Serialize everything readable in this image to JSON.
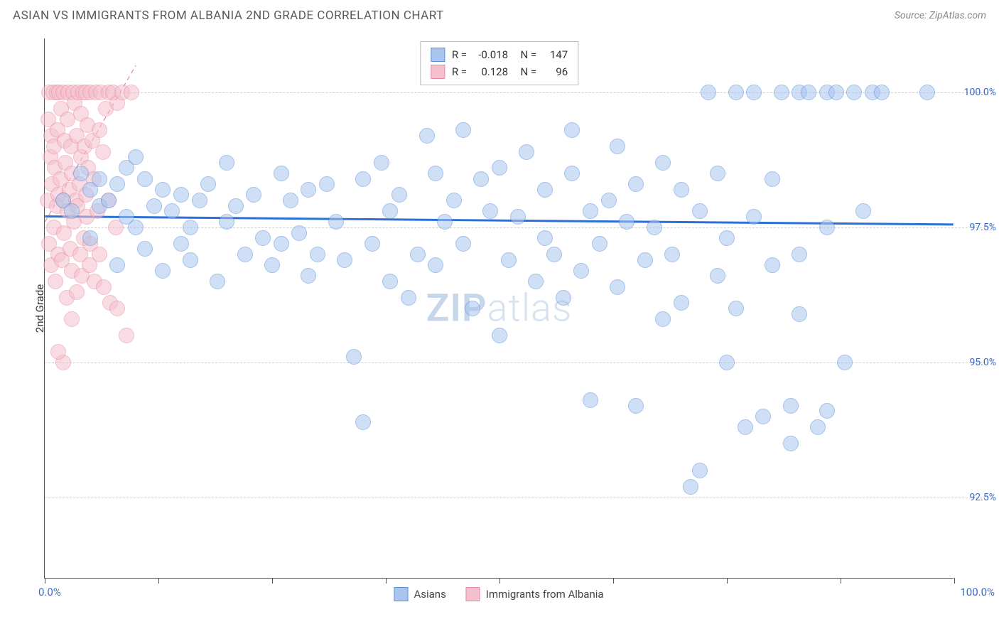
{
  "title": "ASIAN VS IMMIGRANTS FROM ALBANIA 2ND GRADE CORRELATION CHART",
  "source": "Source: ZipAtlas.com",
  "y_axis_title": "2nd Grade",
  "watermark_a": "ZIP",
  "watermark_b": "atlas",
  "chart": {
    "type": "scatter",
    "xlim": [
      0,
      100
    ],
    "ylim": [
      91,
      101
    ],
    "y_ticks": [
      {
        "v": 92.5,
        "label": "92.5%"
      },
      {
        "v": 95.0,
        "label": "95.0%"
      },
      {
        "v": 97.5,
        "label": "97.5%"
      },
      {
        "v": 100.0,
        "label": "100.0%"
      }
    ],
    "x_ticks": [
      0,
      12.5,
      25,
      37.5,
      50,
      62.5,
      75,
      87.5,
      100
    ],
    "x_label_0": "0.0%",
    "x_label_100": "100.0%",
    "background": "#ffffff",
    "grid_color": "#d0d0d0",
    "point_radius": 11,
    "point_opacity": 0.55,
    "series": [
      {
        "name": "Asians",
        "color_fill": "#a9c5ef",
        "color_stroke": "#5b8fd6",
        "R": "-0.018",
        "N": "147",
        "trend": {
          "x1": 0,
          "y1": 97.7,
          "x2": 100,
          "y2": 97.55,
          "stroke": "#2c6fd6",
          "width": 3,
          "dash": "none"
        },
        "points": [
          [
            2,
            98.0
          ],
          [
            3,
            97.8
          ],
          [
            4,
            98.5
          ],
          [
            5,
            98.2
          ],
          [
            5,
            97.3
          ],
          [
            6,
            97.9
          ],
          [
            6,
            98.4
          ],
          [
            7,
            98.0
          ],
          [
            8,
            98.3
          ],
          [
            8,
            96.8
          ],
          [
            9,
            97.7
          ],
          [
            9,
            98.6
          ],
          [
            10,
            97.5
          ],
          [
            10,
            98.8
          ],
          [
            11,
            98.4
          ],
          [
            11,
            97.1
          ],
          [
            12,
            97.9
          ],
          [
            13,
            98.2
          ],
          [
            13,
            96.7
          ],
          [
            14,
            97.8
          ],
          [
            15,
            98.1
          ],
          [
            15,
            97.2
          ],
          [
            16,
            97.5
          ],
          [
            16,
            96.9
          ],
          [
            17,
            98.0
          ],
          [
            18,
            98.3
          ],
          [
            19,
            96.5
          ],
          [
            20,
            97.6
          ],
          [
            20,
            98.7
          ],
          [
            21,
            97.9
          ],
          [
            22,
            97.0
          ],
          [
            23,
            98.1
          ],
          [
            24,
            97.3
          ],
          [
            25,
            96.8
          ],
          [
            26,
            98.5
          ],
          [
            26,
            97.2
          ],
          [
            27,
            98.0
          ],
          [
            28,
            97.4
          ],
          [
            29,
            98.2
          ],
          [
            29,
            96.6
          ],
          [
            30,
            97.0
          ],
          [
            31,
            98.3
          ],
          [
            32,
            97.6
          ],
          [
            33,
            96.9
          ],
          [
            34,
            95.1
          ],
          [
            35,
            98.4
          ],
          [
            35,
            93.9
          ],
          [
            36,
            97.2
          ],
          [
            37,
            98.7
          ],
          [
            38,
            96.5
          ],
          [
            38,
            97.8
          ],
          [
            39,
            98.1
          ],
          [
            40,
            96.2
          ],
          [
            41,
            97.0
          ],
          [
            42,
            99.2
          ],
          [
            43,
            98.5
          ],
          [
            43,
            96.8
          ],
          [
            44,
            97.6
          ],
          [
            45,
            98.0
          ],
          [
            46,
            99.3
          ],
          [
            46,
            97.2
          ],
          [
            47,
            96.0
          ],
          [
            48,
            98.4
          ],
          [
            49,
            97.8
          ],
          [
            50,
            95.5
          ],
          [
            50,
            98.6
          ],
          [
            51,
            96.9
          ],
          [
            52,
            97.7
          ],
          [
            53,
            98.9
          ],
          [
            54,
            96.5
          ],
          [
            55,
            97.3
          ],
          [
            55,
            98.2
          ],
          [
            56,
            97.0
          ],
          [
            57,
            96.2
          ],
          [
            58,
            98.5
          ],
          [
            58,
            99.3
          ],
          [
            59,
            96.7
          ],
          [
            60,
            94.3
          ],
          [
            60,
            97.8
          ],
          [
            61,
            97.2
          ],
          [
            62,
            98.0
          ],
          [
            63,
            96.4
          ],
          [
            63,
            99.0
          ],
          [
            64,
            97.6
          ],
          [
            65,
            94.2
          ],
          [
            65,
            98.3
          ],
          [
            66,
            96.9
          ],
          [
            67,
            97.5
          ],
          [
            68,
            95.8
          ],
          [
            68,
            98.7
          ],
          [
            69,
            97.0
          ],
          [
            70,
            96.1
          ],
          [
            70,
            98.2
          ],
          [
            71,
            92.7
          ],
          [
            72,
            93.0
          ],
          [
            72,
            97.8
          ],
          [
            73,
            100.0
          ],
          [
            74,
            98.5
          ],
          [
            74,
            96.6
          ],
          [
            75,
            97.3
          ],
          [
            75,
            95.0
          ],
          [
            76,
            96.0
          ],
          [
            76,
            100.0
          ],
          [
            77,
            93.8
          ],
          [
            78,
            100.0
          ],
          [
            78,
            97.7
          ],
          [
            79,
            94.0
          ],
          [
            80,
            96.8
          ],
          [
            80,
            98.4
          ],
          [
            81,
            100.0
          ],
          [
            82,
            93.5
          ],
          [
            82,
            94.2
          ],
          [
            83,
            97.0
          ],
          [
            83,
            100.0
          ],
          [
            83,
            95.9
          ],
          [
            84,
            100.0
          ],
          [
            85,
            93.8
          ],
          [
            86,
            100.0
          ],
          [
            86,
            97.5
          ],
          [
            86,
            94.1
          ],
          [
            87,
            100.0
          ],
          [
            88,
            95.0
          ],
          [
            89,
            100.0
          ],
          [
            90,
            97.8
          ],
          [
            91,
            100.0
          ],
          [
            92,
            100.0
          ],
          [
            97,
            100.0
          ]
        ]
      },
      {
        "name": "Immigrants from Albania",
        "color_fill": "#f5c0cd",
        "color_stroke": "#e68aa3",
        "R": "0.128",
        "N": "96",
        "trend": {
          "x1": 0,
          "y1": 97.6,
          "x2": 10,
          "y2": 100.5,
          "stroke": "#e06f8f",
          "width": 1,
          "dash": "6,5"
        },
        "points": [
          [
            0.3,
            98.0
          ],
          [
            0.4,
            99.5
          ],
          [
            0.5,
            97.2
          ],
          [
            0.5,
            100.0
          ],
          [
            0.6,
            98.8
          ],
          [
            0.7,
            96.8
          ],
          [
            0.7,
            99.2
          ],
          [
            0.8,
            98.3
          ],
          [
            0.9,
            100.0
          ],
          [
            1.0,
            97.5
          ],
          [
            1.0,
            99.0
          ],
          [
            1.1,
            98.6
          ],
          [
            1.2,
            96.5
          ],
          [
            1.3,
            100.0
          ],
          [
            1.3,
            97.9
          ],
          [
            1.4,
            99.3
          ],
          [
            1.5,
            98.1
          ],
          [
            1.5,
            97.0
          ],
          [
            1.6,
            100.0
          ],
          [
            1.7,
            98.4
          ],
          [
            1.8,
            99.7
          ],
          [
            1.9,
            96.9
          ],
          [
            2.0,
            98.0
          ],
          [
            2.0,
            100.0
          ],
          [
            2.1,
            97.4
          ],
          [
            2.2,
            99.1
          ],
          [
            2.3,
            98.7
          ],
          [
            2.4,
            96.2
          ],
          [
            2.5,
            99.5
          ],
          [
            2.5,
            97.8
          ],
          [
            2.6,
            100.0
          ],
          [
            2.7,
            98.2
          ],
          [
            2.8,
            97.1
          ],
          [
            2.9,
            99.0
          ],
          [
            3.0,
            98.5
          ],
          [
            3.0,
            96.7
          ],
          [
            3.1,
            100.0
          ],
          [
            3.2,
            97.6
          ],
          [
            3.3,
            99.8
          ],
          [
            3.4,
            98.0
          ],
          [
            3.5,
            96.3
          ],
          [
            3.5,
            99.2
          ],
          [
            3.6,
            97.9
          ],
          [
            3.7,
            100.0
          ],
          [
            3.8,
            98.3
          ],
          [
            3.9,
            97.0
          ],
          [
            4.0,
            99.6
          ],
          [
            4.0,
            98.8
          ],
          [
            4.1,
            96.6
          ],
          [
            4.2,
            100.0
          ],
          [
            4.3,
            97.3
          ],
          [
            4.4,
            99.0
          ],
          [
            4.5,
            98.1
          ],
          [
            4.5,
            100.0
          ],
          [
            4.6,
            97.7
          ],
          [
            4.7,
            99.4
          ],
          [
            4.8,
            98.6
          ],
          [
            4.9,
            96.8
          ],
          [
            5.0,
            100.0
          ],
          [
            5.0,
            97.2
          ],
          [
            5.2,
            99.1
          ],
          [
            5.4,
            98.4
          ],
          [
            5.5,
            96.5
          ],
          [
            5.6,
            100.0
          ],
          [
            5.8,
            97.8
          ],
          [
            6.0,
            99.3
          ],
          [
            6.0,
            97.0
          ],
          [
            6.2,
            100.0
          ],
          [
            6.4,
            98.9
          ],
          [
            6.5,
            96.4
          ],
          [
            6.7,
            99.7
          ],
          [
            7.0,
            100.0
          ],
          [
            7.0,
            98.0
          ],
          [
            7.2,
            96.1
          ],
          [
            7.5,
            100.0
          ],
          [
            7.8,
            97.5
          ],
          [
            8.0,
            99.8
          ],
          [
            8.0,
            96.0
          ],
          [
            8.5,
            100.0
          ],
          [
            9.0,
            95.5
          ],
          [
            9.5,
            100.0
          ],
          [
            2.0,
            95.0
          ],
          [
            3.0,
            95.8
          ],
          [
            1.5,
            95.2
          ]
        ]
      }
    ]
  },
  "legend_bottom": [
    {
      "label": "Asians",
      "fill": "#a9c5ef",
      "stroke": "#5b8fd6"
    },
    {
      "label": "Immigrants from Albania",
      "fill": "#f5c0cd",
      "stroke": "#e68aa3"
    }
  ]
}
